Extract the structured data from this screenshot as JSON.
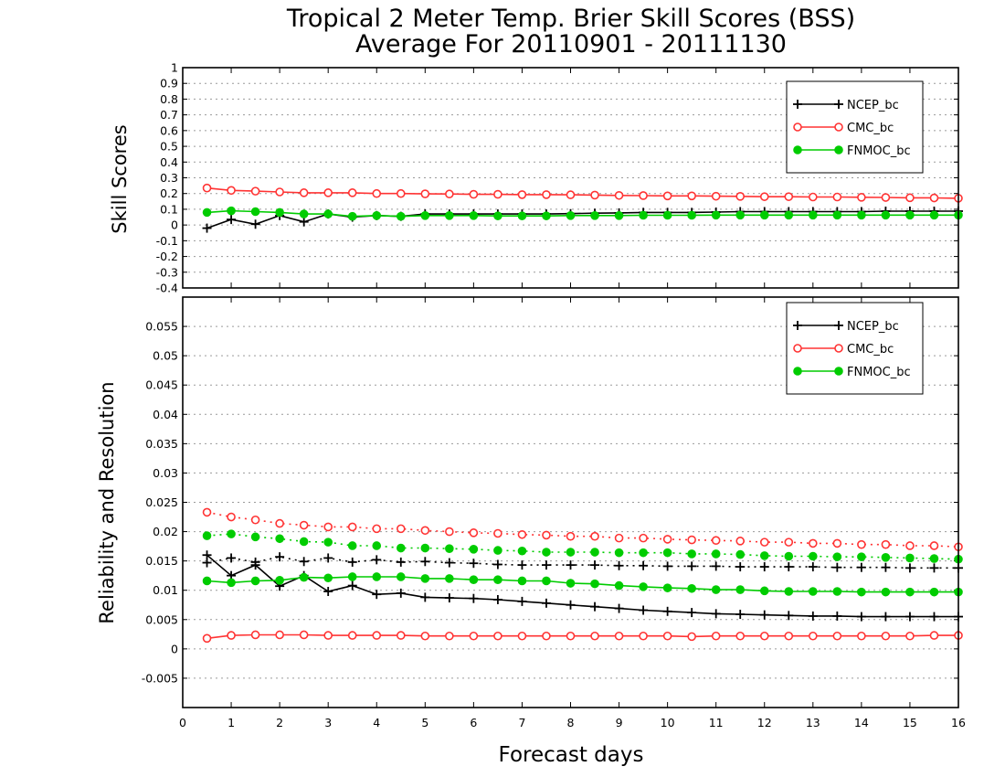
{
  "chart_data": [
    {
      "type": "line",
      "title": "Tropical 2 Meter Temp. Brier Skill Scores (BSS)",
      "subtitle": "Average For 20110901 - 20111130",
      "ylabel": "Skill Scores",
      "xlim": [
        0,
        16
      ],
      "ylim": [
        -0.4,
        1
      ],
      "yticks": [
        "-0.4",
        "-0.3",
        "-0.2",
        "-0.1",
        "0",
        "0.1",
        "0.2",
        "0.3",
        "0.4",
        "0.5",
        "0.6",
        "0.7",
        "0.8",
        "0.9",
        "1"
      ],
      "grid": true,
      "legend_position": "top-right",
      "x": [
        0.5,
        1,
        1.5,
        2,
        2.5,
        3,
        3.5,
        4,
        4.5,
        5,
        5.5,
        6,
        6.5,
        7,
        7.5,
        8,
        8.5,
        9,
        9.5,
        10,
        10.5,
        11,
        11.5,
        12,
        12.5,
        13,
        13.5,
        14,
        14.5,
        15,
        15.5,
        16
      ],
      "series": [
        {
          "name": "NCEP_bc",
          "color": "#000000",
          "marker": "plus",
          "style": "solid",
          "values": [
            -0.02,
            0.035,
            0.005,
            0.06,
            0.02,
            0.07,
            0.05,
            0.06,
            0.055,
            0.07,
            0.07,
            0.07,
            0.07,
            0.07,
            0.07,
            0.072,
            0.075,
            0.077,
            0.08,
            0.08,
            0.08,
            0.082,
            0.085,
            0.085,
            0.085,
            0.085,
            0.085,
            0.085,
            0.088,
            0.088,
            0.088,
            0.088
          ]
        },
        {
          "name": "CMC_bc",
          "color": "#ff3333",
          "marker": "open-circle",
          "style": "solid",
          "values": [
            0.235,
            0.22,
            0.215,
            0.21,
            0.205,
            0.205,
            0.205,
            0.2,
            0.2,
            0.198,
            0.197,
            0.195,
            0.195,
            0.193,
            0.193,
            0.192,
            0.19,
            0.188,
            0.187,
            0.185,
            0.185,
            0.183,
            0.182,
            0.18,
            0.18,
            0.178,
            0.178,
            0.176,
            0.175,
            0.173,
            0.172,
            0.17
          ]
        },
        {
          "name": "FNMOC_bc",
          "color": "#00cc00",
          "marker": "filled-circle",
          "style": "solid",
          "values": [
            0.08,
            0.09,
            0.085,
            0.08,
            0.07,
            0.07,
            0.055,
            0.06,
            0.055,
            0.06,
            0.06,
            0.06,
            0.058,
            0.058,
            0.058,
            0.06,
            0.06,
            0.06,
            0.062,
            0.062,
            0.062,
            0.063,
            0.063,
            0.063,
            0.063,
            0.063,
            0.063,
            0.063,
            0.063,
            0.063,
            0.063,
            0.063
          ]
        }
      ]
    },
    {
      "type": "line",
      "ylabel": "Reliability and Resolution",
      "xlabel": "Forecast days",
      "xlim": [
        0,
        16
      ],
      "ylim": [
        -0.01,
        0.06
      ],
      "xticks": [
        "0",
        "1",
        "2",
        "3",
        "4",
        "5",
        "6",
        "7",
        "8",
        "9",
        "10",
        "11",
        "12",
        "13",
        "14",
        "15",
        "16"
      ],
      "yticks": [
        "-0.005",
        "0",
        "0.005",
        "0.01",
        "0.015",
        "0.02",
        "0.025",
        "0.03",
        "0.035",
        "0.04",
        "0.045",
        "0.05",
        "0.055"
      ],
      "grid": true,
      "legend_position": "top-right",
      "x": [
        0.5,
        1,
        1.5,
        2,
        2.5,
        3,
        3.5,
        4,
        4.5,
        5,
        5.5,
        6,
        6.5,
        7,
        7.5,
        8,
        8.5,
        9,
        9.5,
        10,
        10.5,
        11,
        11.5,
        12,
        12.5,
        13,
        13.5,
        14,
        14.5,
        15,
        15.5,
        16
      ],
      "series": [
        {
          "name": "NCEP_bc",
          "color": "#000000",
          "marker": "plus",
          "style": "solid",
          "values": [
            0.016,
            0.0125,
            0.0143,
            0.0107,
            0.0125,
            0.0098,
            0.0108,
            0.0093,
            0.0095,
            0.0088,
            0.0087,
            0.0086,
            0.0084,
            0.0081,
            0.0078,
            0.0075,
            0.0072,
            0.0069,
            0.0066,
            0.0064,
            0.0062,
            0.006,
            0.0059,
            0.0058,
            0.0057,
            0.0056,
            0.0056,
            0.0055,
            0.0055,
            0.0055,
            0.0055,
            0.0055
          ]
        },
        {
          "series_role": "dotted",
          "color": "#000000",
          "marker": "plus",
          "style": "dotted",
          "values": [
            0.0147,
            0.0155,
            0.0148,
            0.0157,
            0.0149,
            0.0155,
            0.0148,
            0.0152,
            0.0148,
            0.0149,
            0.0147,
            0.0146,
            0.0144,
            0.0143,
            0.0143,
            0.0143,
            0.0143,
            0.0142,
            0.0142,
            0.0141,
            0.0141,
            0.0141,
            0.014,
            0.014,
            0.014,
            0.014,
            0.0139,
            0.0139,
            0.0139,
            0.0138,
            0.0138,
            0.0138
          ]
        },
        {
          "name": "CMC_bc",
          "color": "#ff3333",
          "marker": "open-circle",
          "style": "solid",
          "values": [
            0.0018,
            0.0023,
            0.0024,
            0.0024,
            0.0024,
            0.0023,
            0.0023,
            0.0023,
            0.0023,
            0.0022,
            0.0022,
            0.0022,
            0.0022,
            0.0022,
            0.0022,
            0.0022,
            0.0022,
            0.0022,
            0.0022,
            0.0022,
            0.0021,
            0.0022,
            0.0022,
            0.0022,
            0.0022,
            0.0022,
            0.0022,
            0.0022,
            0.0022,
            0.0022,
            0.0023,
            0.0023
          ]
        },
        {
          "series_role": "dotted",
          "color": "#ff3333",
          "marker": "open-circle",
          "style": "dotted",
          "values": [
            0.0233,
            0.0225,
            0.022,
            0.0214,
            0.0211,
            0.0208,
            0.0208,
            0.0205,
            0.0205,
            0.0202,
            0.02,
            0.0198,
            0.0197,
            0.0195,
            0.0194,
            0.0192,
            0.0192,
            0.0189,
            0.0189,
            0.0187,
            0.0186,
            0.0185,
            0.0184,
            0.0182,
            0.0182,
            0.018,
            0.018,
            0.0178,
            0.0178,
            0.0176,
            0.0176,
            0.0174
          ]
        },
        {
          "name": "FNMOC_bc",
          "color": "#00cc00",
          "marker": "filled-circle",
          "style": "solid",
          "values": [
            0.0116,
            0.0113,
            0.0116,
            0.0117,
            0.0122,
            0.0121,
            0.0123,
            0.0123,
            0.0123,
            0.012,
            0.012,
            0.0118,
            0.0118,
            0.0116,
            0.0116,
            0.0112,
            0.0111,
            0.0108,
            0.0106,
            0.0104,
            0.0103,
            0.0101,
            0.0101,
            0.0099,
            0.0098,
            0.0098,
            0.0098,
            0.0097,
            0.0097,
            0.0097,
            0.0097,
            0.0097
          ]
        },
        {
          "series_role": "dotted",
          "color": "#00cc00",
          "marker": "filled-circle",
          "style": "dotted",
          "values": [
            0.0193,
            0.0196,
            0.0191,
            0.0188,
            0.0183,
            0.0182,
            0.0176,
            0.0176,
            0.0172,
            0.0172,
            0.0171,
            0.017,
            0.0168,
            0.0167,
            0.0165,
            0.0165,
            0.0165,
            0.0164,
            0.0164,
            0.0164,
            0.0162,
            0.0162,
            0.0161,
            0.0159,
            0.0158,
            0.0158,
            0.0157,
            0.0157,
            0.0156,
            0.0155,
            0.0154,
            0.0153
          ]
        }
      ]
    }
  ]
}
